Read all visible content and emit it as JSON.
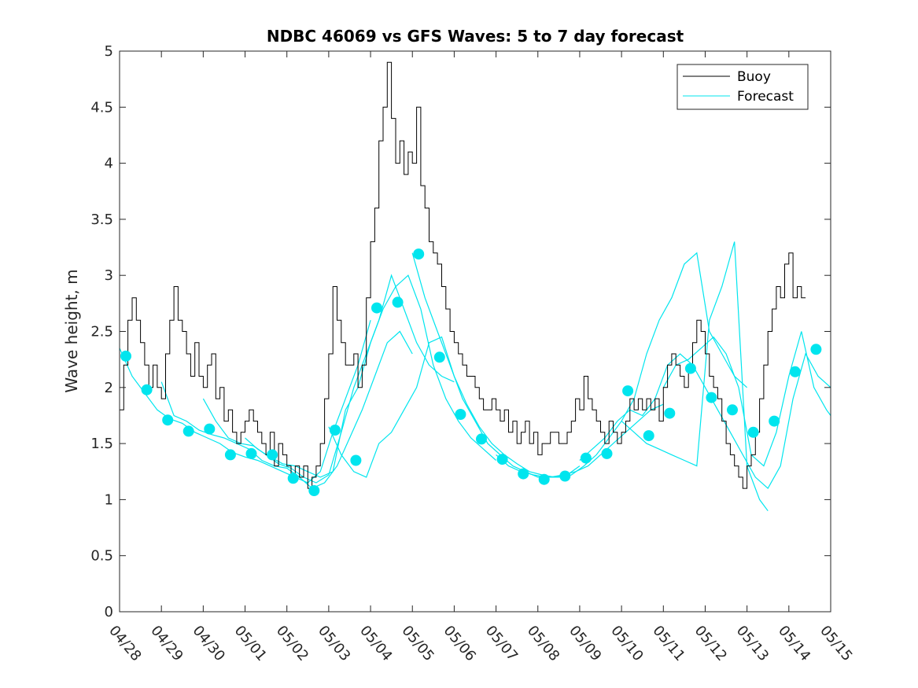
{
  "chart_data": {
    "type": "line",
    "title": "NDBC 46069 vs GFS Waves: 5 to 7 day forecast",
    "xlabel": "",
    "ylabel": "Wave height, m",
    "xlim": [
      0,
      17
    ],
    "ylim": [
      0,
      5
    ],
    "x_ticks": [
      {
        "x": 0,
        "label": "04/28"
      },
      {
        "x": 1,
        "label": "04/29"
      },
      {
        "x": 2,
        "label": "04/30"
      },
      {
        "x": 3,
        "label": "05/01"
      },
      {
        "x": 4,
        "label": "05/02"
      },
      {
        "x": 5,
        "label": "05/03"
      },
      {
        "x": 6,
        "label": "05/04"
      },
      {
        "x": 7,
        "label": "05/05"
      },
      {
        "x": 8,
        "label": "05/06"
      },
      {
        "x": 9,
        "label": "05/07"
      },
      {
        "x": 10,
        "label": "05/08"
      },
      {
        "x": 11,
        "label": "05/09"
      },
      {
        "x": 12,
        "label": "05/10"
      },
      {
        "x": 13,
        "label": "05/11"
      },
      {
        "x": 14,
        "label": "05/12"
      },
      {
        "x": 15,
        "label": "05/13"
      },
      {
        "x": 16,
        "label": "05/14"
      },
      {
        "x": 17,
        "label": "05/15"
      }
    ],
    "y_ticks": [
      {
        "y": 0,
        "label": "0"
      },
      {
        "y": 0.5,
        "label": "0.5"
      },
      {
        "y": 1,
        "label": "1"
      },
      {
        "y": 1.5,
        "label": "1.5"
      },
      {
        "y": 2,
        "label": "2"
      },
      {
        "y": 2.5,
        "label": "2.5"
      },
      {
        "y": 3,
        "label": "3"
      },
      {
        "y": 3.5,
        "label": "3.5"
      },
      {
        "y": 4,
        "label": "4"
      },
      {
        "y": 4.5,
        "label": "4.5"
      },
      {
        "y": 5,
        "label": "5"
      }
    ],
    "grid": false,
    "legend": {
      "position": "top-right",
      "entries": [
        {
          "label": "Buoy",
          "color": "#000000"
        },
        {
          "label": "Forecast",
          "color": "#00e5ee"
        }
      ]
    },
    "series": [
      {
        "name": "Buoy",
        "color": "#000000",
        "x": [
          0.0,
          0.1,
          0.2,
          0.3,
          0.4,
          0.5,
          0.6,
          0.7,
          0.8,
          0.9,
          1.0,
          1.1,
          1.2,
          1.3,
          1.4,
          1.5,
          1.6,
          1.7,
          1.8,
          1.9,
          2.0,
          2.1,
          2.2,
          2.3,
          2.4,
          2.5,
          2.6,
          2.7,
          2.8,
          2.9,
          3.0,
          3.1,
          3.2,
          3.3,
          3.4,
          3.5,
          3.6,
          3.7,
          3.8,
          3.9,
          4.0,
          4.1,
          4.2,
          4.3,
          4.4,
          4.5,
          4.6,
          4.7,
          4.8,
          4.9,
          5.0,
          5.1,
          5.2,
          5.3,
          5.4,
          5.5,
          5.6,
          5.7,
          5.8,
          5.9,
          6.0,
          6.1,
          6.2,
          6.3,
          6.4,
          6.5,
          6.6,
          6.7,
          6.8,
          6.9,
          7.0,
          7.1,
          7.2,
          7.3,
          7.4,
          7.5,
          7.6,
          7.7,
          7.8,
          7.9,
          8.0,
          8.1,
          8.2,
          8.3,
          8.4,
          8.5,
          8.6,
          8.7,
          8.8,
          8.9,
          9.0,
          9.1,
          9.2,
          9.3,
          9.4,
          9.5,
          9.6,
          9.7,
          9.8,
          9.9,
          10.0,
          10.1,
          10.2,
          10.3,
          10.4,
          10.5,
          10.6,
          10.7,
          10.8,
          10.9,
          11.0,
          11.1,
          11.2,
          11.3,
          11.4,
          11.5,
          11.6,
          11.7,
          11.8,
          11.9,
          12.0,
          12.1,
          12.2,
          12.3,
          12.4,
          12.5,
          12.6,
          12.7,
          12.8,
          12.9,
          13.0,
          13.1,
          13.2,
          13.3,
          13.4,
          13.5,
          13.6,
          13.7,
          13.8,
          13.9,
          14.0,
          14.1,
          14.2,
          14.3,
          14.4,
          14.5,
          14.6,
          14.7,
          14.8,
          14.9,
          15.0,
          15.1,
          15.2,
          15.3,
          15.4,
          15.5,
          15.6,
          15.7,
          15.8,
          15.9,
          16.0,
          16.1,
          16.2,
          16.3,
          16.4
        ],
        "y": [
          1.8,
          2.2,
          2.6,
          2.8,
          2.6,
          2.4,
          2.2,
          2.0,
          2.2,
          2.0,
          1.9,
          2.3,
          2.6,
          2.9,
          2.6,
          2.5,
          2.3,
          2.1,
          2.4,
          2.1,
          2.0,
          2.2,
          2.3,
          1.9,
          2.0,
          1.7,
          1.8,
          1.6,
          1.5,
          1.6,
          1.7,
          1.8,
          1.7,
          1.6,
          1.5,
          1.4,
          1.6,
          1.3,
          1.5,
          1.4,
          1.3,
          1.2,
          1.3,
          1.2,
          1.3,
          1.1,
          1.2,
          1.3,
          1.5,
          1.9,
          2.3,
          2.9,
          2.6,
          2.4,
          2.2,
          2.2,
          2.3,
          2.0,
          2.2,
          2.8,
          3.3,
          3.6,
          4.2,
          4.5,
          4.9,
          4.4,
          4.0,
          4.2,
          3.9,
          4.1,
          4.0,
          4.5,
          3.8,
          3.6,
          3.3,
          3.2,
          3.1,
          2.9,
          2.7,
          2.5,
          2.4,
          2.3,
          2.2,
          2.1,
          2.1,
          2.0,
          1.9,
          1.8,
          1.8,
          1.9,
          1.8,
          1.7,
          1.8,
          1.6,
          1.7,
          1.5,
          1.6,
          1.7,
          1.5,
          1.6,
          1.4,
          1.5,
          1.5,
          1.6,
          1.6,
          1.5,
          1.5,
          1.6,
          1.7,
          1.9,
          1.8,
          2.1,
          1.9,
          1.8,
          1.7,
          1.6,
          1.5,
          1.7,
          1.6,
          1.5,
          1.6,
          1.7,
          1.9,
          1.8,
          1.9,
          1.8,
          1.9,
          1.8,
          1.9,
          1.7,
          2.0,
          2.2,
          2.3,
          2.2,
          2.1,
          2.0,
          2.2,
          2.4,
          2.6,
          2.5,
          2.3,
          2.1,
          2.0,
          1.9,
          1.7,
          1.5,
          1.4,
          1.3,
          1.2,
          1.1,
          1.3,
          1.4,
          1.6,
          1.9,
          2.2,
          2.5,
          2.7,
          2.9,
          2.8,
          3.1,
          3.2,
          2.8,
          2.9,
          2.8,
          2.8
        ],
        "values_approximate": true
      }
    ],
    "forecast_series": [
      {
        "x": [
          0.0,
          0.3,
          0.6,
          0.9,
          1.2,
          1.5,
          1.8,
          2.1,
          2.4,
          2.7,
          3.0,
          3.3,
          3.6,
          3.9,
          4.2,
          4.5,
          4.8,
          5.1,
          5.4,
          5.7,
          6.0
        ],
        "y": [
          2.35,
          2.1,
          1.95,
          1.8,
          1.72,
          1.68,
          1.6,
          1.55,
          1.5,
          1.42,
          1.38,
          1.35,
          1.3,
          1.25,
          1.2,
          1.15,
          1.25,
          1.6,
          1.9,
          2.2,
          2.6
        ]
      },
      {
        "x": [
          1.0,
          1.3,
          1.6,
          1.9,
          2.2,
          2.5,
          2.8,
          3.1,
          3.4,
          3.7,
          4.0,
          4.3,
          4.6,
          4.9,
          5.2,
          5.5,
          5.8,
          6.1,
          6.4,
          6.7,
          7.0
        ],
        "y": [
          2.05,
          1.75,
          1.7,
          1.62,
          1.58,
          1.55,
          1.5,
          1.45,
          1.35,
          1.3,
          1.28,
          1.2,
          1.1,
          1.15,
          1.3,
          1.55,
          1.8,
          2.1,
          2.4,
          2.5,
          2.3
        ]
      },
      {
        "x": [
          2.0,
          2.3,
          2.6,
          2.9,
          3.2,
          3.5,
          3.8,
          4.1,
          4.4,
          4.7,
          5.0,
          5.3,
          5.6,
          5.9,
          6.2,
          6.5,
          6.8,
          7.1,
          7.4,
          7.7,
          8.0
        ],
        "y": [
          1.9,
          1.7,
          1.55,
          1.5,
          1.48,
          1.4,
          1.32,
          1.28,
          1.2,
          1.15,
          1.22,
          1.6,
          2.0,
          2.3,
          2.6,
          3.0,
          2.7,
          2.4,
          2.2,
          2.1,
          2.05
        ]
      },
      {
        "x": [
          3.0,
          3.3,
          3.6,
          3.9,
          4.2,
          4.5,
          4.8,
          5.1,
          5.4,
          5.7,
          6.0,
          6.3,
          6.6,
          6.9,
          7.2,
          7.5,
          7.8,
          8.1,
          8.4,
          8.7,
          9.0
        ],
        "y": [
          1.55,
          1.45,
          1.38,
          1.32,
          1.3,
          1.25,
          1.2,
          1.25,
          1.8,
          2.0,
          2.4,
          2.7,
          2.9,
          3.0,
          2.7,
          2.2,
          1.9,
          1.7,
          1.55,
          1.45,
          1.35
        ]
      },
      {
        "x": [
          5.0,
          5.3,
          5.6,
          5.9,
          6.2,
          6.5,
          6.8,
          7.1,
          7.4,
          7.7,
          8.0,
          8.3,
          8.6,
          8.9,
          9.2,
          9.5,
          9.8,
          10.1,
          10.4,
          10.7,
          11.0
        ],
        "y": [
          1.65,
          1.4,
          1.25,
          1.2,
          1.5,
          1.6,
          1.8,
          2.0,
          2.4,
          2.45,
          2.1,
          1.85,
          1.65,
          1.5,
          1.4,
          1.32,
          1.25,
          1.22,
          1.2,
          1.22,
          1.3
        ]
      },
      {
        "x": [
          7.0,
          7.3,
          7.6,
          7.9,
          8.2,
          8.5,
          8.8,
          9.1,
          9.4,
          9.7,
          10.0,
          10.3,
          10.6,
          10.9,
          11.2,
          11.5,
          11.8,
          12.1,
          12.4,
          12.7,
          13.0
        ],
        "y": [
          3.2,
          2.8,
          2.5,
          2.2,
          1.9,
          1.7,
          1.5,
          1.4,
          1.3,
          1.25,
          1.2,
          1.2,
          1.22,
          1.25,
          1.3,
          1.4,
          1.5,
          1.6,
          1.7,
          1.8,
          1.85
        ]
      },
      {
        "x": [
          9.0,
          9.3,
          9.6,
          9.9,
          10.2,
          10.5,
          10.8,
          11.1,
          11.4,
          11.7,
          12.0,
          12.3,
          12.6,
          12.9,
          13.2,
          13.5,
          13.8,
          14.1,
          14.4,
          14.7,
          15.0
        ],
        "y": [
          1.4,
          1.3,
          1.25,
          1.22,
          1.2,
          1.2,
          1.22,
          1.3,
          1.4,
          1.55,
          1.7,
          1.9,
          2.3,
          2.6,
          2.8,
          3.1,
          3.2,
          2.5,
          2.3,
          2.1,
          2.0
        ]
      },
      {
        "x": [
          11.0,
          11.3,
          11.6,
          11.9,
          12.2,
          12.5,
          12.8,
          13.1,
          13.4,
          13.7,
          14.0,
          14.3,
          14.6,
          14.9,
          15.2,
          15.5,
          15.8,
          16.1,
          16.4,
          16.7,
          17.0
        ],
        "y": [
          1.35,
          1.45,
          1.55,
          1.7,
          1.8,
          1.75,
          1.9,
          2.2,
          2.3,
          2.2,
          2.0,
          1.8,
          1.6,
          1.4,
          1.2,
          1.1,
          1.3,
          1.9,
          2.3,
          2.1,
          2.0
        ]
      },
      {
        "x": [
          12.0,
          12.3,
          12.6,
          12.9,
          13.2,
          13.5,
          13.8,
          14.1,
          14.4,
          14.7,
          15.0,
          15.3,
          15.5
        ],
        "y": [
          1.7,
          1.6,
          1.5,
          1.45,
          1.4,
          1.35,
          1.3,
          2.6,
          2.9,
          3.3,
          1.3,
          1.0,
          0.9
        ]
      },
      {
        "x": [
          13.0,
          13.3,
          13.6,
          13.9,
          14.2,
          14.5,
          14.8,
          15.1,
          15.4,
          15.7,
          16.0,
          16.3,
          16.6,
          16.9,
          17.0
        ],
        "y": [
          2.0,
          2.2,
          2.25,
          2.35,
          2.45,
          2.3,
          2.0,
          1.4,
          1.3,
          1.6,
          2.1,
          2.5,
          2.0,
          1.8,
          1.75
        ]
      }
    ],
    "forecast_markers": {
      "x": [
        0.15,
        0.65,
        1.15,
        1.65,
        2.15,
        2.65,
        3.15,
        3.65,
        4.15,
        4.65,
        5.15,
        5.65,
        6.15,
        6.65,
        7.15,
        7.65,
        8.15,
        8.65,
        9.15,
        9.65,
        10.15,
        10.65,
        11.15,
        11.65,
        12.15,
        12.65,
        13.15,
        13.65,
        14.15,
        14.65,
        15.15,
        15.65,
        16.15,
        16.65
      ],
      "y": [
        2.28,
        1.98,
        1.71,
        1.61,
        1.63,
        1.4,
        1.41,
        1.4,
        1.19,
        1.08,
        1.62,
        1.35,
        2.71,
        2.76,
        3.19,
        2.27,
        1.76,
        1.54,
        1.36,
        1.23,
        1.18,
        1.21,
        1.37,
        1.41,
        1.97,
        1.57,
        1.77,
        2.17,
        1.91,
        1.8,
        1.6,
        1.7,
        2.14,
        2.34
      ]
    }
  }
}
